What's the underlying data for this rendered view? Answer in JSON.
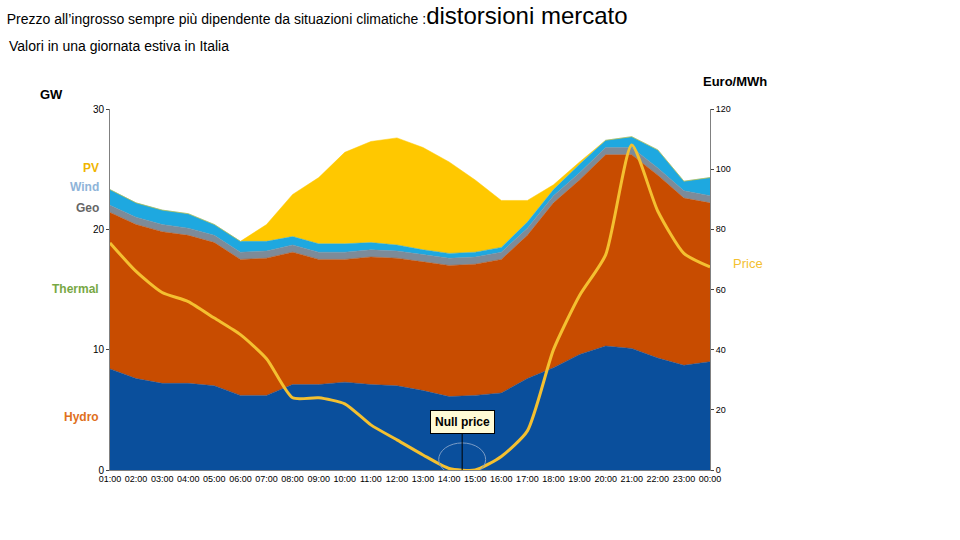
{
  "chart_data": {
    "type": "area",
    "title": "Prezzo all’ingrosso sempre più dipendente da situazioni climatiche :distorsioni mercato",
    "subtitle": "Valori in una giornata estiva in Italia",
    "y_label": "GW",
    "y2_label": "Euro/MWh",
    "stacked": true,
    "grid": false,
    "categories": [
      "01:00",
      "02:00",
      "03:00",
      "04:00",
      "05:00",
      "06:00",
      "07:00",
      "08:00",
      "09:00",
      "10:00",
      "11:00",
      "12:00",
      "13:00",
      "14:00",
      "15:00",
      "16:00",
      "17:00",
      "18:00",
      "19:00",
      "20:00",
      "21:00",
      "22:00",
      "23:00",
      "00:00"
    ],
    "ylim": [
      0,
      30
    ],
    "yticks": [
      0,
      10,
      20,
      30
    ],
    "y2lim": [
      0,
      120
    ],
    "y2ticks": [
      0,
      20,
      40,
      60,
      80,
      100,
      120
    ],
    "series": [
      {
        "name": "Hydro",
        "color": "#0a4f9c",
        "values": [
          8.4,
          7.6,
          7.2,
          7.2,
          7.0,
          6.2,
          6.2,
          7.1,
          7.1,
          7.3,
          7.1,
          7.0,
          6.6,
          6.1,
          6.2,
          6.4,
          7.6,
          8.5,
          9.6,
          10.3,
          10.1,
          9.3,
          8.7,
          9.0
        ]
      },
      {
        "name": "Thermal",
        "color": "#c84c00",
        "values": [
          13.0,
          12.8,
          12.6,
          12.3,
          11.9,
          11.3,
          11.4,
          11.0,
          10.4,
          10.2,
          10.6,
          10.6,
          10.7,
          10.9,
          10.9,
          11.1,
          11.9,
          13.7,
          14.5,
          15.9,
          16.1,
          15.2,
          13.9,
          13.2
        ]
      },
      {
        "name": "Geo",
        "color": "#7d8b99",
        "values": [
          0.6,
          0.6,
          0.6,
          0.6,
          0.6,
          0.6,
          0.6,
          0.6,
          0.6,
          0.6,
          0.6,
          0.6,
          0.6,
          0.6,
          0.6,
          0.6,
          0.6,
          0.6,
          0.6,
          0.6,
          0.6,
          0.6,
          0.6,
          0.6
        ]
      },
      {
        "name": "Wind",
        "color": "#1ea8e0",
        "values": [
          1.3,
          1.2,
          1.2,
          1.2,
          0.9,
          0.9,
          0.8,
          0.7,
          0.7,
          0.7,
          0.6,
          0.5,
          0.4,
          0.4,
          0.4,
          0.4,
          0.5,
          0.5,
          0.7,
          0.6,
          0.9,
          1.5,
          0.8,
          1.5
        ]
      },
      {
        "name": "PV",
        "color": "#ffc800",
        "values": [
          0,
          0,
          0,
          0,
          0,
          0,
          1.4,
          3.5,
          5.5,
          7.6,
          8.4,
          8.9,
          8.5,
          7.6,
          6.0,
          3.9,
          1.8,
          0.4,
          0.2,
          0,
          0,
          0,
          0,
          0
        ]
      },
      {
        "name": "Price",
        "type": "line",
        "axis": "y2",
        "color": "#f4c030",
        "values": [
          75.5,
          66,
          59,
          56,
          50.5,
          45,
          37,
          24,
          24,
          22,
          15,
          10,
          5,
          0.5,
          0,
          4.5,
          13,
          40,
          58,
          71.5,
          108,
          86,
          72,
          67.5
        ]
      }
    ],
    "annotations": [
      {
        "text": "Null price",
        "category": "15:00",
        "value": 0
      }
    ]
  }
}
